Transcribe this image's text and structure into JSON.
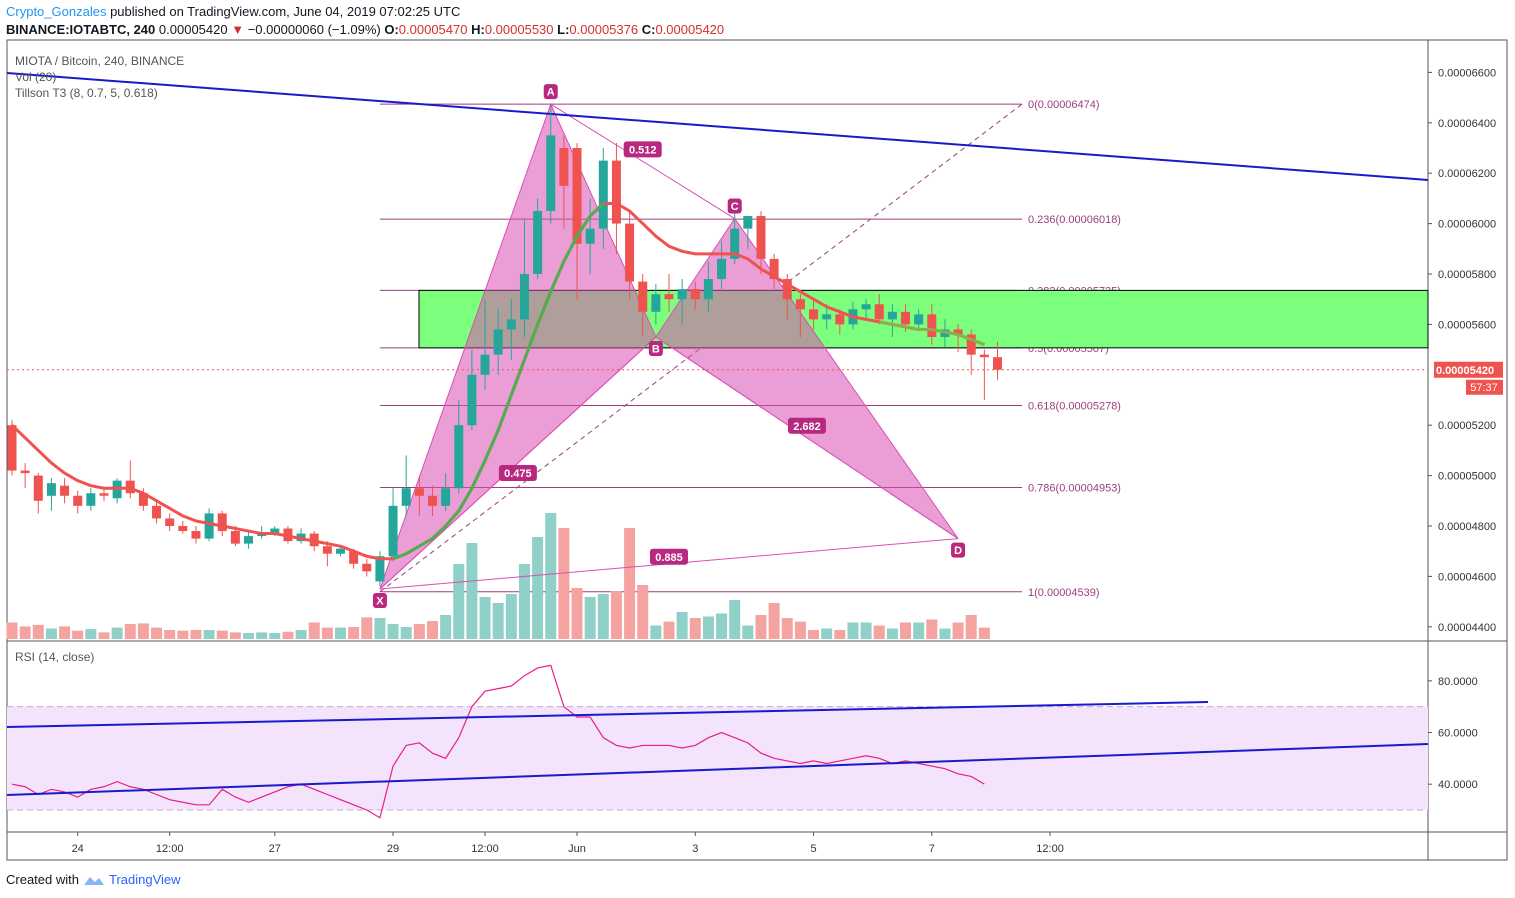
{
  "header": {
    "user": "Crypto_Gonzales",
    "published": "published on TradingView.com, June 04, 2019 07:02:25 UTC",
    "symbol": "BINANCE:IOTABTC, 240",
    "last": "0.00005420",
    "arrow": "▼",
    "change": "−0.00000060 (−1.09%)",
    "o_label": "O:",
    "o_value": "0.00005470",
    "h_label": "H:",
    "h_value": "0.00005530",
    "l_label": "L:",
    "l_value": "0.00005376",
    "c_label": "C:",
    "c_value": "0.00005420"
  },
  "legends": {
    "main": "MIOTA / Bitcoin, 240, BINANCE",
    "vol": "Vol (20)",
    "tillson": "Tillson T3 (8, 0.7, 5, 0.618)",
    "rsi": "RSI (14, close)"
  },
  "footer": {
    "created": "Created with",
    "brand": "TradingView"
  },
  "chart_data": {
    "type": "candlestick",
    "price_axis": {
      "ticks": [
        "0.00006600",
        "0.00006400",
        "0.00006200",
        "0.00006000",
        "0.00005800",
        "0.00005600",
        "0.00005200",
        "0.00005000",
        "0.00004800",
        "0.00004600",
        "0.00004400"
      ],
      "tick_values": [
        6.6,
        6.4,
        6.2,
        6.0,
        5.8,
        5.6,
        5.2,
        5.0,
        4.8,
        4.6,
        4.4
      ],
      "last_price_label": "0.00005420",
      "last_price": 5.42,
      "countdown": "57:37",
      "unit_note_scale": 1e-05
    },
    "time_axis": {
      "labels": [
        "24",
        "12:00",
        "27",
        "29",
        "12:00",
        "Jun",
        "3",
        "5",
        "7",
        "12:00"
      ],
      "bar_index": [
        5,
        12,
        20,
        29,
        36,
        43,
        52,
        61,
        70,
        79
      ]
    },
    "candles": [
      [
        5.2,
        5.02,
        5.22,
        5.0
      ],
      [
        5.02,
        5.01,
        5.05,
        4.95
      ],
      [
        5.0,
        4.9,
        5.01,
        4.85
      ],
      [
        4.92,
        4.97,
        4.99,
        4.86
      ],
      [
        4.96,
        4.92,
        4.99,
        4.89
      ],
      [
        4.92,
        4.88,
        4.94,
        4.85
      ],
      [
        4.88,
        4.93,
        4.95,
        4.86
      ],
      [
        4.93,
        4.92,
        4.95,
        4.9
      ],
      [
        4.91,
        4.98,
        4.99,
        4.89
      ],
      [
        4.98,
        4.93,
        5.06,
        4.91
      ],
      [
        4.93,
        4.88,
        4.95,
        4.86
      ],
      [
        4.88,
        4.83,
        4.9,
        4.81
      ],
      [
        4.83,
        4.8,
        4.85,
        4.78
      ],
      [
        4.8,
        4.78,
        4.82,
        4.77
      ],
      [
        4.78,
        4.75,
        4.8,
        4.73
      ],
      [
        4.75,
        4.85,
        4.87,
        4.74
      ],
      [
        4.85,
        4.78,
        4.86,
        4.76
      ],
      [
        4.78,
        4.73,
        4.8,
        4.72
      ],
      [
        4.73,
        4.76,
        4.78,
        4.71
      ],
      [
        4.76,
        4.77,
        4.8,
        4.75
      ],
      [
        4.77,
        4.79,
        4.8,
        4.76
      ],
      [
        4.79,
        4.74,
        4.8,
        4.73
      ],
      [
        4.74,
        4.77,
        4.79,
        4.73
      ],
      [
        4.77,
        4.72,
        4.78,
        4.7
      ],
      [
        4.72,
        4.69,
        4.74,
        4.64
      ],
      [
        4.69,
        4.71,
        4.72,
        4.68
      ],
      [
        4.7,
        4.65,
        4.71,
        4.63
      ],
      [
        4.65,
        4.62,
        4.67,
        4.6
      ],
      [
        4.58,
        4.68,
        4.7,
        4.56
      ],
      [
        4.68,
        4.88,
        4.95,
        4.66
      ],
      [
        4.88,
        4.95,
        5.08,
        4.84
      ],
      [
        4.95,
        4.92,
        5.0,
        4.84
      ],
      [
        4.92,
        4.88,
        4.96,
        4.84
      ],
      [
        4.88,
        4.95,
        5.01,
        4.86
      ],
      [
        4.95,
        5.2,
        5.3,
        4.93
      ],
      [
        5.2,
        5.4,
        5.5,
        5.18
      ],
      [
        5.4,
        5.48,
        5.7,
        5.34
      ],
      [
        5.48,
        5.58,
        5.66,
        5.4
      ],
      [
        5.58,
        5.62,
        5.7,
        5.46
      ],
      [
        5.62,
        5.8,
        6.02,
        5.55
      ],
      [
        5.8,
        6.05,
        6.1,
        5.78
      ],
      [
        6.05,
        6.35,
        6.47,
        6.0
      ],
      [
        6.3,
        6.15,
        6.35,
        5.98
      ],
      [
        6.3,
        5.92,
        6.32,
        5.7
      ],
      [
        5.92,
        5.98,
        6.1,
        5.8
      ],
      [
        5.98,
        6.25,
        6.3,
        5.9
      ],
      [
        6.25,
        6.0,
        6.32,
        5.88
      ],
      [
        6.0,
        5.77,
        6.05,
        5.7
      ],
      [
        5.77,
        5.65,
        5.8,
        5.55
      ],
      [
        5.65,
        5.72,
        5.76,
        5.6
      ],
      [
        5.72,
        5.7,
        5.8,
        5.65
      ],
      [
        5.7,
        5.74,
        5.78,
        5.6
      ],
      [
        5.74,
        5.7,
        5.77,
        5.66
      ],
      [
        5.7,
        5.78,
        5.85,
        5.65
      ],
      [
        5.78,
        5.86,
        5.93,
        5.74
      ],
      [
        5.86,
        5.98,
        6.05,
        5.84
      ],
      [
        5.98,
        6.03,
        6.02,
        5.9
      ],
      [
        6.03,
        5.86,
        6.05,
        5.8
      ],
      [
        5.86,
        5.78,
        5.88,
        5.74
      ],
      [
        5.78,
        5.7,
        5.8,
        5.62
      ],
      [
        5.7,
        5.66,
        5.72,
        5.55
      ],
      [
        5.66,
        5.62,
        5.7,
        5.58
      ],
      [
        5.62,
        5.64,
        5.68,
        5.58
      ],
      [
        5.64,
        5.6,
        5.66,
        5.56
      ],
      [
        5.6,
        5.66,
        5.69,
        5.58
      ],
      [
        5.66,
        5.68,
        5.7,
        5.62
      ],
      [
        5.68,
        5.62,
        5.72,
        5.6
      ],
      [
        5.62,
        5.65,
        5.68,
        5.55
      ],
      [
        5.65,
        5.6,
        5.68,
        5.57
      ],
      [
        5.6,
        5.64,
        5.66,
        5.58
      ],
      [
        5.64,
        5.55,
        5.68,
        5.52
      ],
      [
        5.55,
        5.58,
        5.62,
        5.51
      ],
      [
        5.58,
        5.56,
        5.6,
        5.49
      ],
      [
        5.56,
        5.48,
        5.58,
        5.4
      ],
      [
        5.48,
        5.47,
        5.5,
        5.3
      ],
      [
        5.47,
        5.42,
        5.53,
        5.38
      ]
    ],
    "volume": [
      0.55,
      0.42,
      0.47,
      0.35,
      0.42,
      0.28,
      0.33,
      0.22,
      0.38,
      0.5,
      0.52,
      0.38,
      0.3,
      0.28,
      0.3,
      0.3,
      0.28,
      0.22,
      0.2,
      0.22,
      0.2,
      0.24,
      0.3,
      0.55,
      0.38,
      0.38,
      0.4,
      0.72,
      0.7,
      0.5,
      0.4,
      0.5,
      0.6,
      0.8,
      2.5,
      3.2,
      1.4,
      1.2,
      1.5,
      2.5,
      3.4,
      4.2,
      3.7,
      1.7,
      1.4,
      1.5,
      1.6,
      3.7,
      1.8,
      0.45,
      0.58,
      0.9,
      0.7,
      0.75,
      0.85,
      1.3,
      0.45,
      0.8,
      1.2,
      0.7,
      0.58,
      0.3,
      0.35,
      0.3,
      0.55,
      0.55,
      0.45,
      0.35,
      0.55,
      0.55,
      0.65,
      0.35,
      0.55,
      0.8,
      0.38
    ],
    "tillson_t3": [
      5.2,
      5.15,
      5.1,
      5.05,
      5.01,
      4.98,
      4.96,
      4.95,
      4.95,
      4.95,
      4.93,
      4.9,
      4.87,
      4.84,
      4.82,
      4.81,
      4.8,
      4.79,
      4.78,
      4.77,
      4.77,
      4.76,
      4.75,
      4.74,
      4.73,
      4.72,
      4.7,
      4.68,
      4.67,
      4.67,
      4.69,
      4.72,
      4.75,
      4.8,
      4.86,
      4.95,
      5.06,
      5.18,
      5.32,
      5.46,
      5.6,
      5.73,
      5.85,
      5.95,
      6.03,
      6.08,
      6.08,
      6.05,
      6.0,
      5.95,
      5.91,
      5.89,
      5.88,
      5.88,
      5.88,
      5.88,
      5.86,
      5.82,
      5.79,
      5.76,
      5.73,
      5.7,
      5.67,
      5.65,
      5.63,
      5.62,
      5.61,
      5.6,
      5.59,
      5.58,
      5.58,
      5.57,
      5.56,
      5.54,
      5.52
    ],
    "rsi": [
      40,
      39,
      36,
      38,
      37,
      35,
      38,
      39,
      41,
      39,
      38,
      36,
      34,
      33,
      32,
      32,
      38,
      35,
      33,
      35,
      37,
      39,
      40,
      38,
      36,
      34,
      32,
      30,
      27,
      47,
      55,
      56,
      52,
      50,
      58,
      70,
      76,
      77,
      78,
      82,
      85,
      86,
      70,
      66,
      66,
      58,
      55,
      54,
      55,
      55,
      55,
      54,
      55,
      58,
      60,
      58,
      56,
      52,
      50,
      49,
      48,
      49,
      48,
      49,
      50,
      51,
      50,
      48,
      49,
      48,
      47,
      46,
      44,
      43,
      40
    ],
    "rsi_axis": {
      "ticks": [
        "80.0000",
        "60.0000",
        "40.0000"
      ],
      "tick_values": [
        80,
        60,
        40
      ],
      "band": [
        30,
        70
      ]
    },
    "fib_levels": [
      {
        "ratio": 0,
        "label": "0(0.00006474)",
        "price": 6.474
      },
      {
        "ratio": 0.236,
        "label": "0.236(0.00006018)",
        "price": 6.018
      },
      {
        "ratio": 0.382,
        "label": "0.382(0.00005735)",
        "price": 5.735
      },
      {
        "ratio": 0.5,
        "label": "0.5(0.00005507)",
        "price": 5.507
      },
      {
        "ratio": 0.618,
        "label": "0.618(0.00005278)",
        "price": 5.278
      },
      {
        "ratio": 0.786,
        "label": "0.786(0.00004953)",
        "price": 4.953
      },
      {
        "ratio": 1,
        "label": "1(0.00004539)",
        "price": 4.539
      }
    ],
    "pattern": {
      "points": [
        {
          "label": "X",
          "bar": 28,
          "price": 4.55
        },
        {
          "label": "A",
          "bar": 41,
          "price": 6.474
        },
        {
          "label": "B",
          "bar": 49,
          "price": 5.55
        },
        {
          "label": "C",
          "bar": 55,
          "price": 6.02
        },
        {
          "label": "D",
          "bar": 72,
          "price": 4.75
        }
      ],
      "ratios": [
        "0.475",
        "0.512",
        "2.682",
        "0.885"
      ]
    },
    "zone": {
      "top": 5.735,
      "bottom": 5.507
    },
    "colors": {
      "up": "#26a69a",
      "down": "#ef5350",
      "pattern": "#d94fb3",
      "zone": "#7cff7c",
      "trend": "#1a1acd",
      "fib": "#9c3f7c",
      "rsi": "#e91e8c",
      "t3_down": "#ef5350",
      "t3_up": "#4caf50"
    }
  }
}
